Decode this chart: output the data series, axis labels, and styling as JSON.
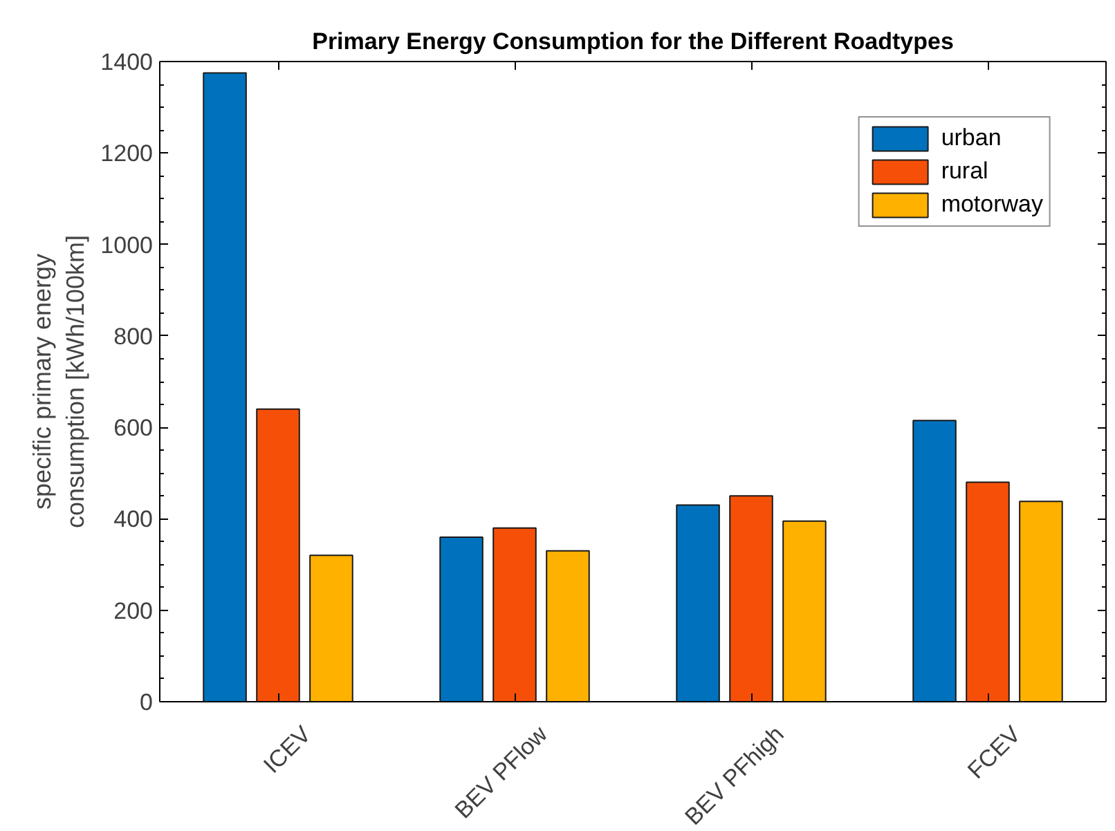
{
  "chart_data": {
    "type": "bar",
    "title": "Primary Energy Consumption for the Different Roadtypes",
    "ylabel": "specific primary energy\nconsumption [kWh/100km]",
    "categories": [
      "ICEV",
      "BEV PFlow",
      "BEV PFhigh",
      "FCEV"
    ],
    "series": [
      {
        "name": "urban",
        "color": "#0072bd",
        "values": [
          1375,
          360,
          430,
          615
        ]
      },
      {
        "name": "rural",
        "color": "#f65008",
        "values": [
          640,
          380,
          450,
          480
        ]
      },
      {
        "name": "motorway",
        "color": "#ffb100",
        "values": [
          320,
          330,
          395,
          438
        ]
      }
    ],
    "ylim": [
      0,
      1400
    ],
    "yticks": [
      0,
      200,
      400,
      600,
      800,
      1000,
      1200,
      1400
    ],
    "grid": false,
    "legend": "top right"
  }
}
